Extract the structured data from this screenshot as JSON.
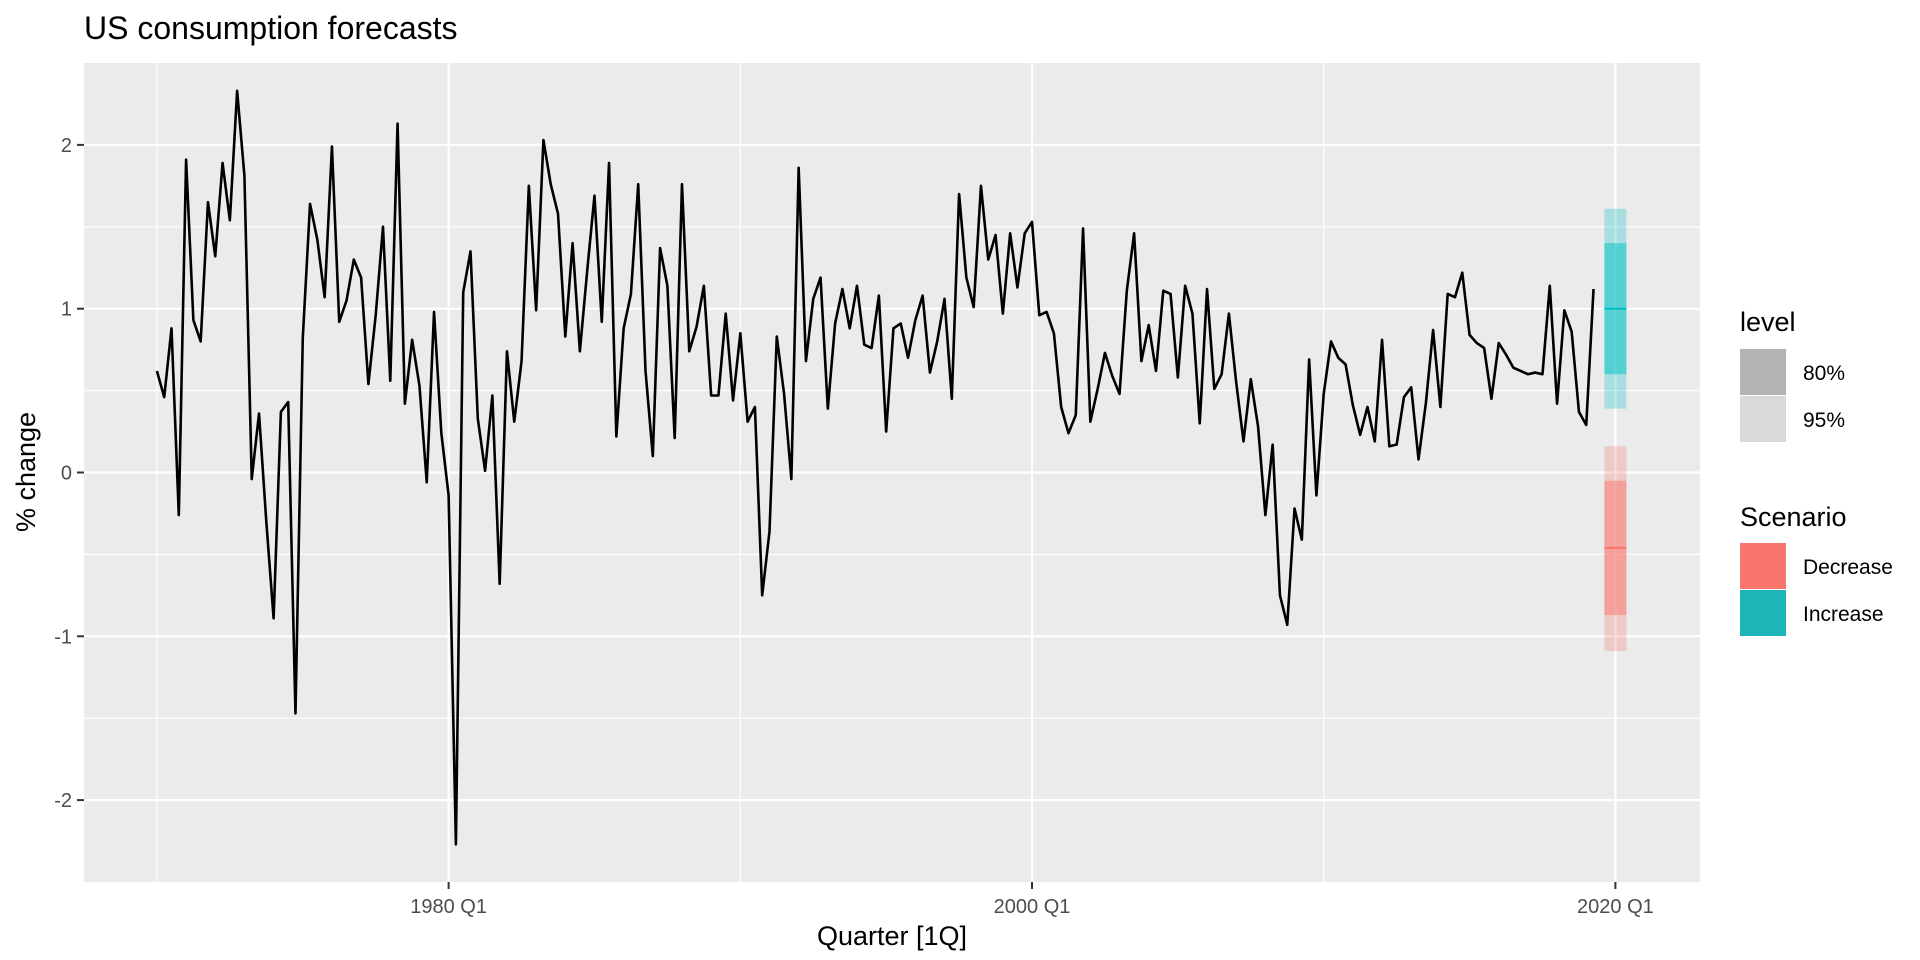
{
  "chart_data": {
    "type": "line",
    "title": "US consumption forecasts",
    "xlabel": "Quarter [1Q]",
    "ylabel": "% change",
    "xlim": [
      1967.5,
      2022.9
    ],
    "ylim": [
      -2.5,
      2.5
    ],
    "x_ticks": [
      {
        "value": 1980.0,
        "label": "1980 Q1"
      },
      {
        "value": 2000.0,
        "label": "2000 Q1"
      },
      {
        "value": 2020.0,
        "label": "2020 Q1"
      }
    ],
    "x_minor_ticks": [
      1970.0,
      1990.0,
      2010.0
    ],
    "y_ticks": [
      {
        "value": -2,
        "label": "-2"
      },
      {
        "value": -1,
        "label": "-1"
      },
      {
        "value": 0,
        "label": "0"
      },
      {
        "value": 1,
        "label": "1"
      },
      {
        "value": 2,
        "label": "2"
      }
    ],
    "y_minor_ticks": [
      -1.5,
      -0.5,
      0.5,
      1.5
    ],
    "grid": true,
    "series": [
      {
        "color": "#000000",
        "start": 1970.0,
        "step": 0.25,
        "values": [
          0.62,
          0.46,
          0.88,
          -0.26,
          1.91,
          0.93,
          0.8,
          1.65,
          1.32,
          1.89,
          1.54,
          2.33,
          1.81,
          -0.04,
          0.36,
          -0.3,
          -0.89,
          0.37,
          0.43,
          -1.47,
          0.82,
          1.64,
          1.42,
          1.07,
          1.99,
          0.92,
          1.05,
          1.3,
          1.19,
          0.54,
          0.96,
          1.5,
          0.56,
          2.13,
          0.42,
          0.81,
          0.53,
          -0.06,
          0.98,
          0.24,
          -0.14,
          -2.27,
          1.1,
          1.35,
          0.33,
          0.01,
          0.47,
          -0.68,
          0.74,
          0.31,
          0.68,
          1.75,
          0.99,
          2.03,
          1.76,
          1.58,
          0.83,
          1.4,
          0.74,
          1.23,
          1.69,
          0.92,
          1.89,
          0.22,
          0.88,
          1.09,
          1.76,
          0.62,
          0.1,
          1.37,
          1.14,
          0.21,
          1.76,
          0.74,
          0.89,
          1.14,
          0.47,
          0.47,
          0.97,
          0.44,
          0.85,
          0.31,
          0.4,
          -0.75,
          -0.36,
          0.83,
          0.48,
          -0.04,
          1.86,
          0.68,
          1.06,
          1.19,
          0.39,
          0.91,
          1.12,
          0.88,
          1.14,
          0.78,
          0.76,
          1.08,
          0.25,
          0.88,
          0.91,
          0.7,
          0.93,
          1.08,
          0.61,
          0.8,
          1.06,
          0.45,
          1.7,
          1.19,
          1.01,
          1.75,
          1.3,
          1.45,
          0.97,
          1.46,
          1.13,
          1.46,
          1.53,
          0.96,
          0.98,
          0.85,
          0.4,
          0.24,
          0.35,
          1.49,
          0.31,
          0.51,
          0.73,
          0.59,
          0.48,
          1.11,
          1.46,
          0.68,
          0.9,
          0.62,
          1.11,
          1.09,
          0.58,
          1.14,
          0.97,
          0.3,
          1.12,
          0.51,
          0.6,
          0.97,
          0.55,
          0.19,
          0.57,
          0.28,
          -0.26,
          0.17,
          -0.75,
          -0.93,
          -0.22,
          -0.41,
          0.69,
          -0.14,
          0.48,
          0.8,
          0.7,
          0.66,
          0.41,
          0.23,
          0.4,
          0.19,
          0.81,
          0.16,
          0.17,
          0.46,
          0.52,
          0.08,
          0.42,
          0.87,
          0.4,
          1.09,
          1.07,
          1.22,
          0.84,
          0.79,
          0.76,
          0.45,
          0.79,
          0.72,
          0.64,
          0.62,
          0.6,
          0.61,
          0.6,
          1.14,
          0.42,
          0.99,
          0.86,
          0.37,
          0.29,
          1.12
        ]
      }
    ],
    "forecasts": [
      {
        "scenario": "Decrease",
        "x": 2020.0,
        "mean": -0.46,
        "lo80": -0.87,
        "hi80": -0.05,
        "lo95": -1.09,
        "hi95": 0.16,
        "color": "#F8766D"
      },
      {
        "scenario": "Increase",
        "x": 2020.0,
        "mean": 1.0,
        "lo80": 0.6,
        "hi80": 1.4,
        "lo95": 0.39,
        "hi95": 1.61,
        "color": "#00BFC4"
      }
    ],
    "legend": {
      "placement": "right",
      "level": {
        "title": "level",
        "items": [
          {
            "label": "80%",
            "color": "#B3B3B3"
          },
          {
            "label": "95%",
            "color": "#D9D9D9"
          }
        ]
      },
      "scenario": {
        "title": "Scenario",
        "items": [
          {
            "label": "Decrease",
            "color": "#F8766D"
          },
          {
            "label": "Increase",
            "color": "#1FB5B9"
          }
        ]
      }
    },
    "panel_background": "#EBEBEB",
    "grid_color": "#FFFFFF"
  }
}
